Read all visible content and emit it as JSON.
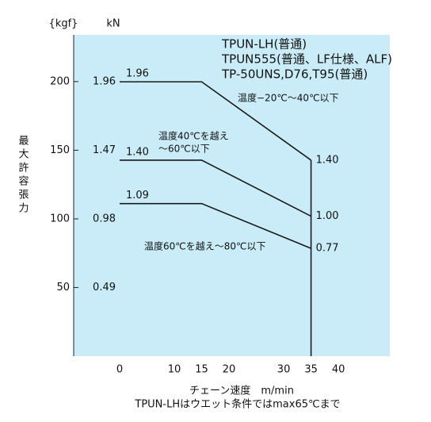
{
  "chart_data": {
    "type": "line",
    "title_lines": [
      "TPUN-LH(普通)",
      "TPUN555(普通、LF仕様、ALF)",
      "TP-50UNS,D76,T95(普通)"
    ],
    "y_label": "最大許容張力",
    "y_unit": "kN",
    "y2_unit": "{kgf}",
    "x_label": "チェーン速度　m/min",
    "note": "TPUN-LHはウエット条件ではmax65℃まで",
    "annotations": [
      "温度−20℃〜40℃以下",
      "温度40℃を越え",
      "〜60℃以下",
      "温度60℃を越え〜80℃以下"
    ],
    "x": [
      0,
      15,
      35
    ],
    "series": [
      {
        "color": "#1a1a1a",
        "values": [
          1.96,
          1.96,
          1.4
        ],
        "value_labels": [
          "1.96",
          null,
          "1.40"
        ]
      },
      {
        "color": "#1a1a1a",
        "values": [
          1.4,
          1.4,
          1.0
        ],
        "value_labels": [
          "1.40",
          null,
          "1.00"
        ]
      },
      {
        "color": "#1a1a1a",
        "values": [
          1.09,
          1.09,
          0.77
        ],
        "value_labels": [
          "1.09",
          null,
          "0.77"
        ]
      }
    ],
    "xlim": [
      -8.4,
      49.4
    ],
    "xticks": [
      0,
      10,
      15,
      20,
      30,
      35,
      40
    ],
    "ylim": [
      0,
      2.295
    ],
    "yticks": [
      {
        "value": 0.49,
        "label": "0.49"
      },
      {
        "value": 0.98,
        "label": "0.98"
      },
      {
        "value": 1.47,
        "label": "1.47"
      },
      {
        "value": 1.96,
        "label": "1.96"
      }
    ],
    "y2lim": [
      0,
      234
    ],
    "y2ticks": [
      50,
      100,
      150,
      200
    ],
    "background": "#c9ecf8"
  }
}
